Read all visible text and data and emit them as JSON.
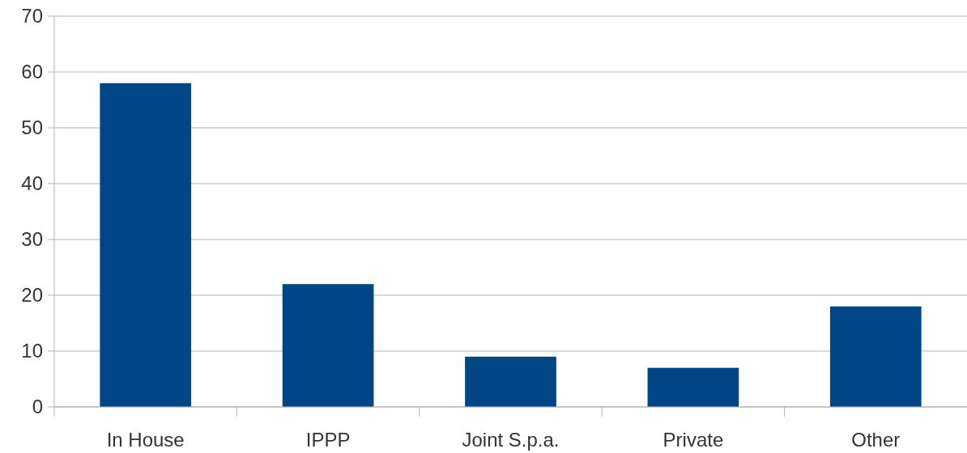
{
  "chart_data": {
    "type": "bar",
    "categories": [
      "In House",
      "IPPP",
      "Joint S.p.a.",
      "Private",
      "Other"
    ],
    "values": [
      58,
      22,
      9,
      7,
      18
    ],
    "color": "#004586",
    "ylim": [
      0,
      70
    ],
    "yticks": [
      0,
      10,
      20,
      30,
      40,
      50,
      60,
      70
    ],
    "grid": "y"
  }
}
